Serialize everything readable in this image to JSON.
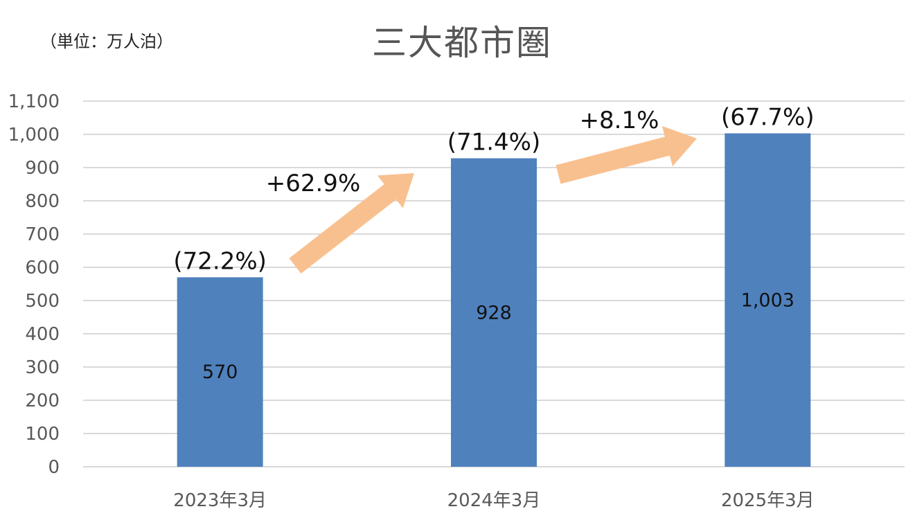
{
  "chart_data": {
    "type": "bar",
    "title": "三大都市圏",
    "unit_label": "（単位：万人泊）",
    "categories": [
      "2023年3月",
      "2024年3月",
      "2025年3月"
    ],
    "values": [
      570,
      928,
      1003
    ],
    "value_labels": [
      "570",
      "928",
      "1,003"
    ],
    "share_labels": [
      "(72.2%)",
      "(71.4%)",
      "(67.7%)"
    ],
    "growth_labels": [
      "+62.9%",
      "+8.1%"
    ],
    "ylim": [
      0,
      1100
    ],
    "yticks": [
      0,
      100,
      200,
      300,
      400,
      500,
      600,
      700,
      800,
      900,
      1000,
      1100
    ],
    "ytick_labels": [
      "0",
      "100",
      "200",
      "300",
      "400",
      "500",
      "600",
      "700",
      "800",
      "900",
      "1,000",
      "1,100"
    ],
    "grid": true,
    "colors": {
      "bar": "#4f81bd",
      "arrow": "#f9c08f",
      "grid": "#d9d9d9",
      "axis_text": "#595959"
    }
  }
}
